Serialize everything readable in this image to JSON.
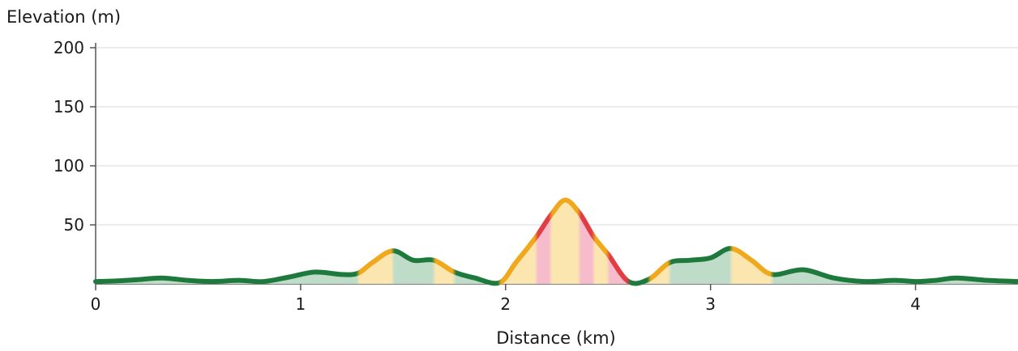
{
  "chart_data": {
    "type": "area",
    "title": "",
    "xlabel": "Distance (km)",
    "ylabel": "Elevation (m)",
    "xlim": [
      0,
      4.5
    ],
    "ylim": [
      0,
      200
    ],
    "x_ticks": [
      0,
      1,
      2,
      3,
      4
    ],
    "y_ticks": [
      50,
      100,
      150,
      200
    ],
    "grid": true,
    "series": [
      {
        "x": [
          0,
          0.1,
          0.2,
          0.32,
          0.45,
          0.57,
          0.7,
          0.82,
          0.95,
          1.07,
          1.2,
          1.28,
          1.35,
          1.45,
          1.55,
          1.65,
          1.75,
          1.85,
          1.97,
          2.05,
          2.15,
          2.22,
          2.29,
          2.36,
          2.43,
          2.5,
          2.6,
          2.7,
          2.8,
          2.9,
          3.0,
          3.1,
          3.2,
          3.3,
          3.45,
          3.6,
          3.75,
          3.9,
          4.0,
          4.1,
          4.2,
          4.35,
          4.5
        ],
        "y": [
          2,
          2.5,
          3.5,
          5,
          3,
          2,
          3,
          2,
          6,
          10,
          8,
          9,
          18,
          28,
          20,
          20,
          10,
          5,
          1,
          18,
          40,
          58,
          71,
          60,
          40,
          25,
          2,
          4,
          18,
          20,
          22,
          30,
          20,
          8,
          12,
          5,
          2,
          3,
          2,
          3,
          5,
          3,
          2
        ]
      }
    ],
    "colors": {
      "line_flat": "#1e7a3c",
      "line_moderate": "#f0a81c",
      "line_steep": "#e23c44",
      "fill_flat": "#bfdcc9",
      "fill_moderate": "#fbe6b0",
      "fill_steep": "#f6bccb"
    }
  }
}
